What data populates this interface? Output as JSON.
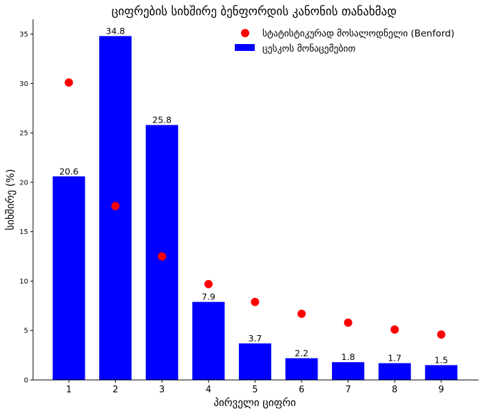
{
  "chart_data": {
    "type": "bar",
    "title": "ციფრების სიხშირე ბენფორდის კანონის თანახმად",
    "xlabel": "პირველი ციფრი",
    "ylabel": "სიხშირე (%)",
    "categories": [
      "1",
      "2",
      "3",
      "4",
      "5",
      "6",
      "7",
      "8",
      "9"
    ],
    "ylim": [
      0,
      36.5
    ],
    "yticks": [
      0,
      5,
      10,
      15,
      20,
      25,
      30,
      35
    ],
    "series": [
      {
        "name": "ცესკოს მონაცემებით",
        "kind": "bar",
        "color": "#0000ff",
        "values": [
          20.6,
          34.8,
          25.8,
          7.9,
          3.7,
          2.2,
          1.8,
          1.7,
          1.5
        ],
        "labels": [
          "20.6",
          "34.8",
          "25.8",
          "7.9",
          "3.7",
          "2.2",
          "1.8",
          "1.7",
          "1.5"
        ]
      },
      {
        "name": "სტატისტიკურად მოსალოდნელი (Benford)",
        "kind": "scatter",
        "color": "#ff0000",
        "values": [
          30.1,
          17.6,
          12.5,
          9.7,
          7.9,
          6.7,
          5.8,
          5.1,
          4.6
        ]
      }
    ],
    "legend": "top-right",
    "grid": false
  }
}
